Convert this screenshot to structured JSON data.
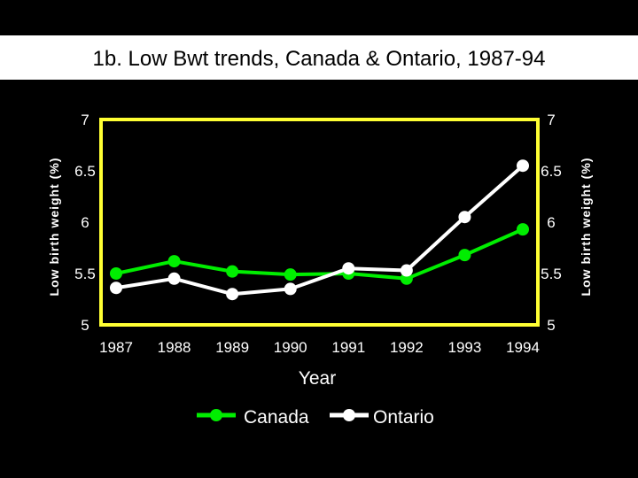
{
  "chart_data": {
    "type": "line",
    "title": "1b. Low Bwt trends, Canada & Ontario, 1987-94",
    "xlabel": "Year",
    "ylabel": "Low birth weight (%)",
    "ylabel_right": "Low birth weight (%)",
    "x": [
      "1987",
      "1988",
      "1989",
      "1990",
      "1991",
      "1992",
      "1993",
      "1994"
    ],
    "ylim": [
      5,
      7
    ],
    "yticks": [
      "5",
      "5.5",
      "6",
      "6.5",
      "7"
    ],
    "legend_position": "bottom",
    "grid": false,
    "frame_color": "#ffff33",
    "background_color": "#000000",
    "title_background": "#ffffff",
    "series": [
      {
        "name": "Canada",
        "color": "#00ee00",
        "values": [
          5.5,
          5.62,
          5.52,
          5.49,
          5.5,
          5.45,
          5.68,
          5.93
        ]
      },
      {
        "name": "Ontario",
        "color": "#ffffff",
        "values": [
          5.36,
          5.45,
          5.3,
          5.35,
          5.55,
          5.53,
          6.05,
          6.55
        ]
      }
    ]
  }
}
